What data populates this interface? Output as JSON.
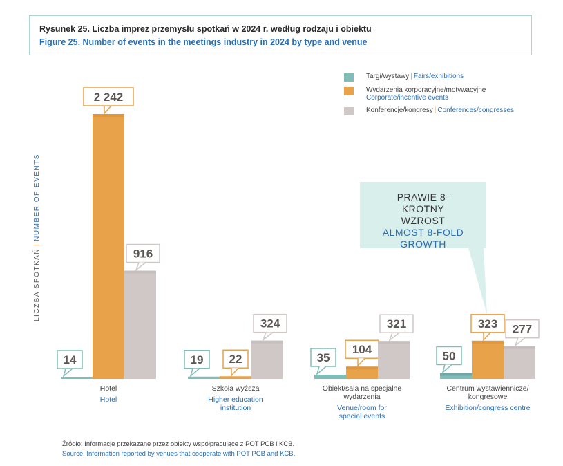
{
  "title": {
    "pl": "Rysunek 25. Liczba imprez przemysłu spotkań w 2024 r. według rodzaju i obiektu",
    "en": "Figure 25. Number of events in the meetings industry in 2024 by type and venue"
  },
  "y_axis_label": {
    "pl": "LICZBA SPOTKAŃ",
    "sep": "|",
    "en": "NUMBER OF EVENTS"
  },
  "legend": [
    {
      "pl": "Targi/wystawy",
      "sep": "|",
      "en": "Fairs/exhibitions",
      "color": "#7fbdb6"
    },
    {
      "pl": "Wydarzenia korporacyjne/motywacyjne",
      "sep": "",
      "en": "Corporate/incentive events",
      "color": "#e8a24a"
    },
    {
      "pl": "Konferencje/kongresy",
      "sep": "|",
      "en": "Conferences/congresses",
      "color": "#cfc8c7"
    }
  ],
  "callout": {
    "pl": "PRAWIE 8-KROTNY WZROST",
    "en": "ALMOST 8-FOLD GROWTH"
  },
  "source": {
    "pl": "Źródło: Informacje przekazane przez obiekty współpracujące z POT PCB i KCB.",
    "en": "Source: Information reported by venues that cooperate with POT PCB and KCB."
  },
  "chart_data": {
    "type": "bar",
    "title": "Number of events in the meetings industry in 2024 by type and venue",
    "ylabel": "LICZBA SPOTKAŃ | NUMBER OF EVENTS",
    "xlabel": "",
    "ylim": [
      0,
      2242
    ],
    "grid": false,
    "legend_position": "top-right",
    "categories": [
      {
        "pl": "Hotel",
        "en": "Hotel"
      },
      {
        "pl": "Szkoła wyższa",
        "en": "Higher education institution"
      },
      {
        "pl": "Obiekt/sala na specjalne wydarzenia",
        "en": "Venue/room for special events"
      },
      {
        "pl": "Centrum wystawiennicze/ kongresowe",
        "en": "Exhibition/congress centre"
      }
    ],
    "series": [
      {
        "name": "Targi/wystawy | Fairs/exhibitions",
        "color": "#7fbdb6",
        "values": [
          14,
          19,
          35,
          50
        ],
        "labels": [
          "14",
          "19",
          "35",
          "50"
        ]
      },
      {
        "name": "Wydarzenia korporacyjne/motywacyjne | Corporate/incentive events",
        "color": "#e8a24a",
        "values": [
          2242,
          22,
          104,
          323
        ],
        "labels": [
          "2 242",
          "22",
          "104",
          "323"
        ]
      },
      {
        "name": "Konferencje/kongresy | Conferences/congresses",
        "color": "#cfc8c7",
        "values": [
          916,
          324,
          321,
          277
        ],
        "labels": [
          "916",
          "324",
          "321",
          "277"
        ]
      }
    ]
  }
}
